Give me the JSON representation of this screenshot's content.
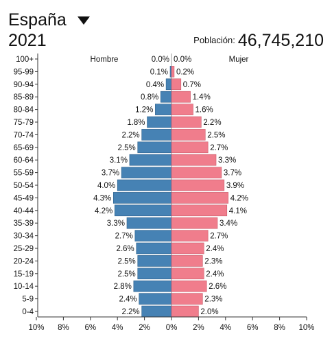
{
  "header": {
    "country": "España",
    "year": "2021",
    "population_label": "Población:",
    "population_value": "46,745,210"
  },
  "colors": {
    "male": "#4682b4",
    "female": "#f07d8c"
  },
  "chart_data": {
    "type": "bar",
    "orientation": "horizontal-population-pyramid",
    "categories": [
      "100+",
      "95-99",
      "90-94",
      "85-89",
      "80-84",
      "75-79",
      "70-74",
      "65-69",
      "60-64",
      "55-59",
      "50-54",
      "45-49",
      "40-44",
      "35-39",
      "30-34",
      "25-29",
      "20-24",
      "15-19",
      "10-14",
      "5-9",
      "0-4"
    ],
    "series": [
      {
        "name": "Hombre",
        "values": [
          0.0,
          0.1,
          0.4,
          0.8,
          1.2,
          1.8,
          2.2,
          2.5,
          3.1,
          3.7,
          4.0,
          4.3,
          4.2,
          3.3,
          2.7,
          2.6,
          2.5,
          2.5,
          2.8,
          2.4,
          2.2
        ],
        "labels": [
          "0.0%",
          "0.1%",
          "0.4%",
          "0.8%",
          "1.2%",
          "1.8%",
          "2.2%",
          "2.5%",
          "3.1%",
          "3.7%",
          "4.0%",
          "4.3%",
          "4.2%",
          "3.3%",
          "2.7%",
          "2.6%",
          "2.5%",
          "2.5%",
          "2.8%",
          "2.4%",
          "2.2%"
        ]
      },
      {
        "name": "Mujer",
        "values": [
          0.0,
          0.2,
          0.7,
          1.4,
          1.6,
          2.2,
          2.5,
          2.7,
          3.3,
          3.7,
          3.9,
          4.2,
          4.1,
          3.4,
          2.7,
          2.4,
          2.3,
          2.4,
          2.6,
          2.3,
          2.0
        ],
        "labels": [
          "0.0%",
          "0.2%",
          "0.7%",
          "1.4%",
          "1.6%",
          "2.2%",
          "2.5%",
          "2.7%",
          "3.3%",
          "3.7%",
          "3.9%",
          "4.2%",
          "4.1%",
          "3.4%",
          "2.7%",
          "2.4%",
          "2.3%",
          "2.4%",
          "2.6%",
          "2.3%",
          "2.0%"
        ]
      }
    ],
    "x_ticks": [
      "10%",
      "8%",
      "6%",
      "4%",
      "2%",
      "0%",
      "2%",
      "4%",
      "6%",
      "8%",
      "10%"
    ],
    "xlim": [
      -10,
      10
    ]
  }
}
